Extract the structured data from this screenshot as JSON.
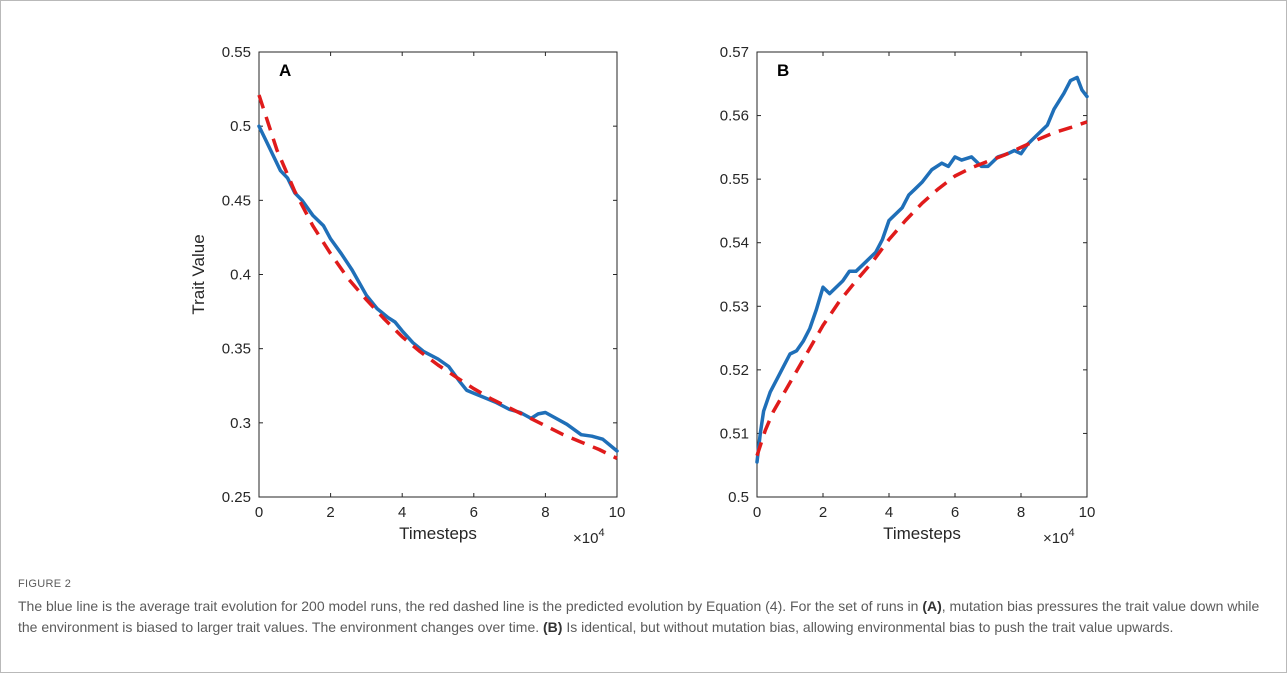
{
  "figure_label": "FIGURE 2",
  "caption": {
    "p1": "The blue line is the average trait evolution for 200 model runs, the red dashed line is the predicted evolution by Equation (4). For the set of runs in ",
    "ref_a": "(A)",
    "p2": ", mutation bias pressures the trait value down while the environment is biased to larger trait values. The environment changes over time. ",
    "ref_b": "(B)",
    "p3": " Is identical, but without mutation bias, allowing environmental bias to push the trait value upwards."
  },
  "colors": {
    "simulated": "#1f6fb8",
    "predicted": "#e01b1b",
    "axis": "#262626"
  },
  "chart_data": [
    {
      "type": "line",
      "panel_label": "A",
      "xlabel": "Timesteps",
      "ylabel": "Trait Value",
      "x_multiplier_label": "×10",
      "x_multiplier_exp": "4",
      "xlim": [
        0,
        10
      ],
      "ylim": [
        0.25,
        0.55
      ],
      "xticks": [
        "0",
        "2",
        "4",
        "6",
        "8",
        "10"
      ],
      "yticks": [
        "0.25",
        "0.3",
        "0.35",
        "0.4",
        "0.45",
        "0.5",
        "0.55"
      ],
      "series": [
        {
          "role": "simulated",
          "style": "solid",
          "x": [
            0,
            0.2,
            0.4,
            0.6,
            0.8,
            1.0,
            1.2,
            1.5,
            1.8,
            2.0,
            2.3,
            2.6,
            3.0,
            3.3,
            3.6,
            3.8,
            4.0,
            4.3,
            4.6,
            5.0,
            5.3,
            5.6,
            5.8,
            6.0,
            6.3,
            6.6,
            7.0,
            7.3,
            7.6,
            7.8,
            8.0,
            8.3,
            8.6,
            9.0,
            9.3,
            9.6,
            10.0
          ],
          "y": [
            0.5,
            0.49,
            0.48,
            0.47,
            0.465,
            0.455,
            0.45,
            0.44,
            0.433,
            0.424,
            0.414,
            0.403,
            0.386,
            0.377,
            0.371,
            0.368,
            0.362,
            0.354,
            0.348,
            0.343,
            0.338,
            0.328,
            0.322,
            0.32,
            0.317,
            0.314,
            0.309,
            0.307,
            0.303,
            0.306,
            0.307,
            0.303,
            0.299,
            0.292,
            0.291,
            0.289,
            0.281
          ]
        },
        {
          "role": "predicted",
          "style": "dashed",
          "x": [
            0,
            0.5,
            1.0,
            1.5,
            2.0,
            2.5,
            3.0,
            3.5,
            4.0,
            4.5,
            5.0,
            5.5,
            6.0,
            6.5,
            7.0,
            7.5,
            8.0,
            8.5,
            9.0,
            9.5,
            10.0
          ],
          "y": [
            0.521,
            0.484,
            0.456,
            0.433,
            0.414,
            0.397,
            0.383,
            0.37,
            0.358,
            0.348,
            0.339,
            0.331,
            0.323,
            0.316,
            0.31,
            0.304,
            0.298,
            0.292,
            0.287,
            0.282,
            0.276
          ]
        }
      ]
    },
    {
      "type": "line",
      "panel_label": "B",
      "xlabel": "Timesteps",
      "ylabel": "",
      "x_multiplier_label": "×10",
      "x_multiplier_exp": "4",
      "xlim": [
        0,
        10
      ],
      "ylim": [
        0.5,
        0.57
      ],
      "xticks": [
        "0",
        "2",
        "4",
        "6",
        "8",
        "10"
      ],
      "yticks": [
        "0.5",
        "0.51",
        "0.52",
        "0.53",
        "0.54",
        "0.55",
        "0.56",
        "0.57"
      ],
      "series": [
        {
          "role": "simulated",
          "style": "solid",
          "x": [
            0,
            0.1,
            0.2,
            0.4,
            0.6,
            0.8,
            1.0,
            1.2,
            1.4,
            1.6,
            1.8,
            2.0,
            2.2,
            2.4,
            2.6,
            2.8,
            3.0,
            3.3,
            3.6,
            3.8,
            4.0,
            4.2,
            4.4,
            4.6,
            4.8,
            5.0,
            5.3,
            5.6,
            5.8,
            6.0,
            6.2,
            6.5,
            6.8,
            7.0,
            7.3,
            7.6,
            7.8,
            8.0,
            8.2,
            8.5,
            8.8,
            9.0,
            9.3,
            9.5,
            9.7,
            9.85,
            10.0
          ],
          "y": [
            0.5055,
            0.51,
            0.5135,
            0.5165,
            0.5185,
            0.5205,
            0.5225,
            0.523,
            0.5245,
            0.5265,
            0.5295,
            0.533,
            0.532,
            0.533,
            0.534,
            0.5355,
            0.5355,
            0.537,
            0.5385,
            0.5405,
            0.5435,
            0.5445,
            0.5455,
            0.5475,
            0.5485,
            0.5495,
            0.5515,
            0.5525,
            0.552,
            0.5535,
            0.553,
            0.5535,
            0.552,
            0.552,
            0.5535,
            0.554,
            0.5545,
            0.554,
            0.5555,
            0.557,
            0.5585,
            0.561,
            0.5635,
            0.5655,
            0.566,
            0.564,
            0.563
          ]
        },
        {
          "role": "predicted",
          "style": "dashed",
          "x": [
            0,
            0.25,
            0.5,
            1.0,
            1.5,
            2.0,
            2.5,
            3.0,
            3.5,
            4.0,
            4.5,
            5.0,
            5.5,
            6.0,
            6.5,
            7.0,
            7.5,
            8.0,
            8.5,
            9.0,
            9.5,
            10.0
          ],
          "y": [
            0.5065,
            0.5105,
            0.5135,
            0.518,
            0.5225,
            0.527,
            0.5308,
            0.534,
            0.537,
            0.5405,
            0.5435,
            0.5462,
            0.5485,
            0.5505,
            0.5518,
            0.5528,
            0.5538,
            0.555,
            0.5562,
            0.5573,
            0.5581,
            0.559
          ]
        }
      ]
    }
  ]
}
